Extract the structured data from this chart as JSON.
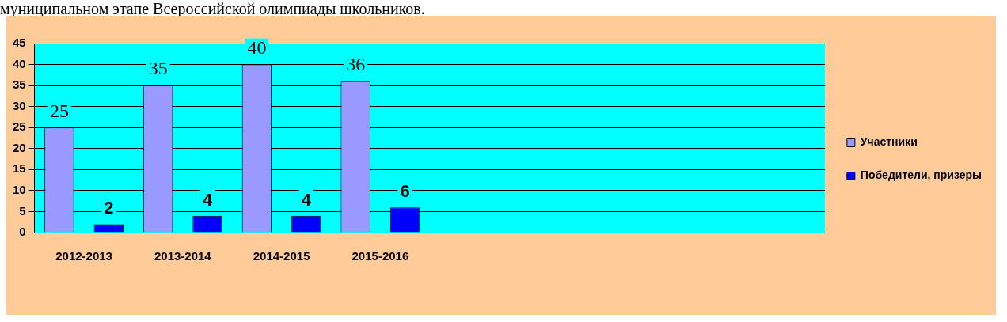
{
  "chart_data": {
    "type": "bar",
    "annotations": [
      "муниципальном этапе Всероссийской олимпиады школьников."
    ],
    "categories": [
      "2012-2013",
      "2013-2014",
      "2014-2015",
      "2015-2016",
      null,
      null,
      null,
      null
    ],
    "series": [
      {
        "name": "Участники",
        "color": "#9999ff",
        "values": [
          25,
          35,
          40,
          36,
          null,
          null,
          null,
          null
        ]
      },
      {
        "name": "Победители, призеры",
        "color": "#0000ff",
        "values": [
          2,
          4,
          4,
          6,
          null,
          null,
          null,
          null
        ]
      }
    ],
    "ylim": [
      0,
      45
    ],
    "yticks": [
      0,
      5,
      10,
      15,
      20,
      25,
      30,
      35,
      40,
      45
    ],
    "grid": "y",
    "legend": "right",
    "data_labels": true
  }
}
